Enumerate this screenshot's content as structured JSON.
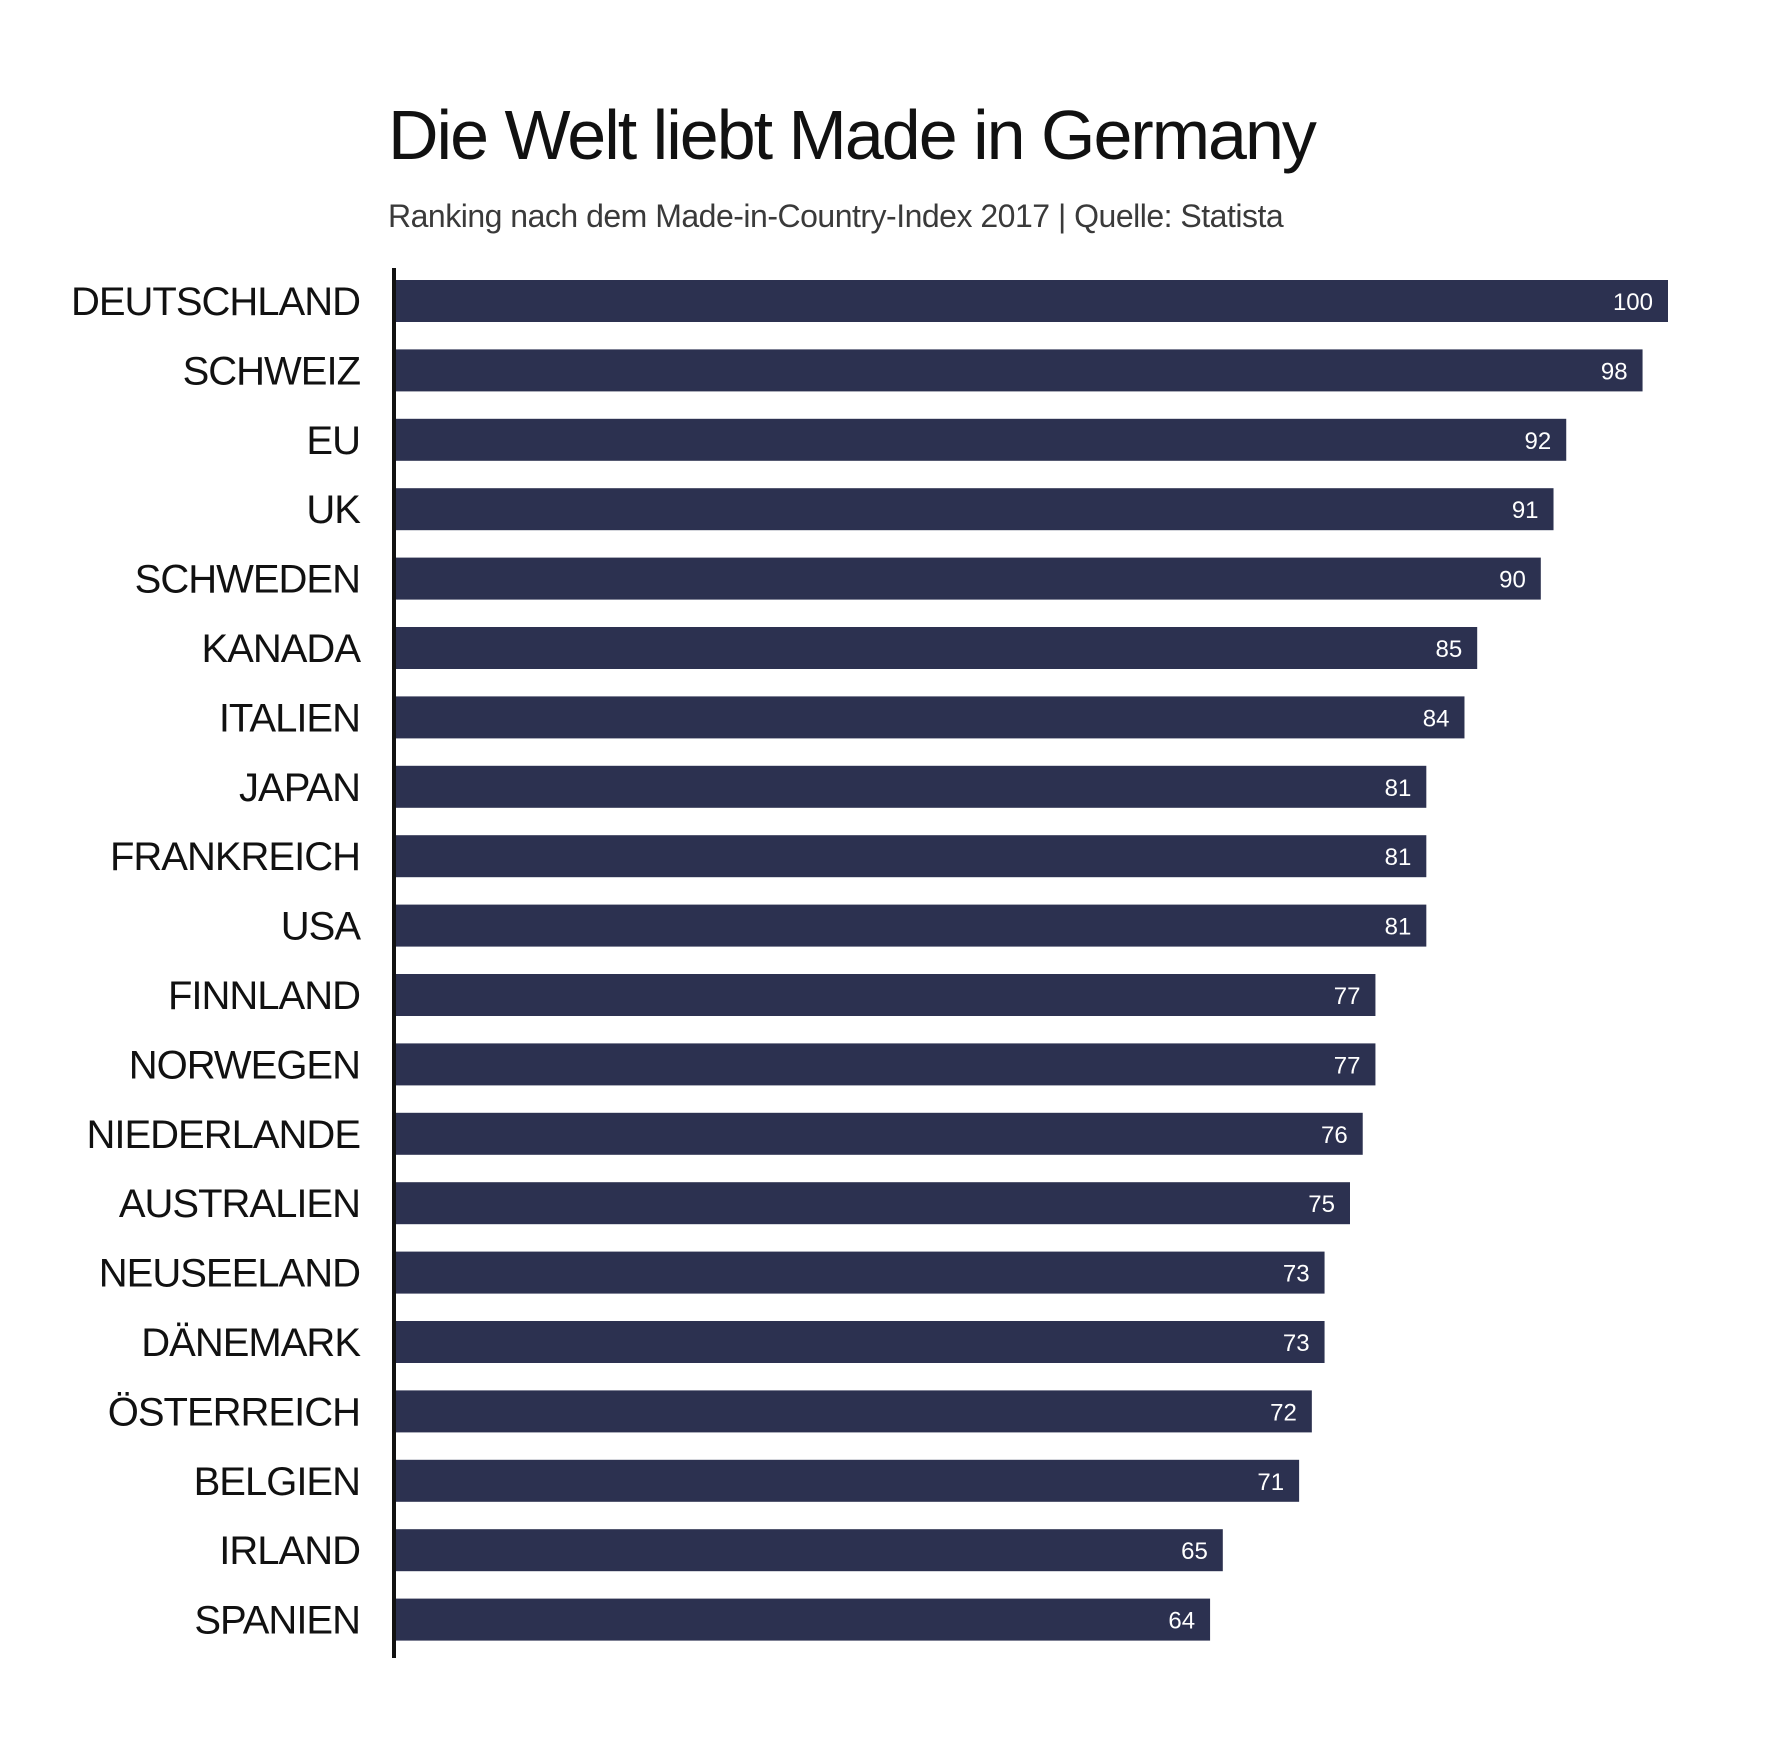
{
  "colors": {
    "bar": "#2c3150",
    "axis": "#111111",
    "bar_label": "#ffffff",
    "background": "#ffffff"
  },
  "chart_data": {
    "type": "bar",
    "orientation": "horizontal",
    "title": "Die Welt liebt Made in Germany",
    "subtitle": "Ranking nach dem Made-in-Country-Index 2017 | Quelle: Statista",
    "xlabel": "",
    "ylabel": "",
    "xlim": [
      0,
      100
    ],
    "grid": false,
    "categories": [
      "DEUTSCHLAND",
      "SCHWEIZ",
      "EU",
      "UK",
      "SCHWEDEN",
      "KANADA",
      "ITALIEN",
      "JAPAN",
      "FRANKREICH",
      "USA",
      "FINNLAND",
      "NORWEGEN",
      "NIEDERLANDE",
      "AUSTRALIEN",
      "NEUSEELAND",
      "DÄNEMARK",
      "ÖSTERREICH",
      "BELGIEN",
      "IRLAND",
      "SPANIEN"
    ],
    "values": [
      100,
      98,
      92,
      91,
      90,
      85,
      84,
      81,
      81,
      81,
      77,
      77,
      76,
      75,
      73,
      73,
      72,
      71,
      65,
      64
    ]
  }
}
